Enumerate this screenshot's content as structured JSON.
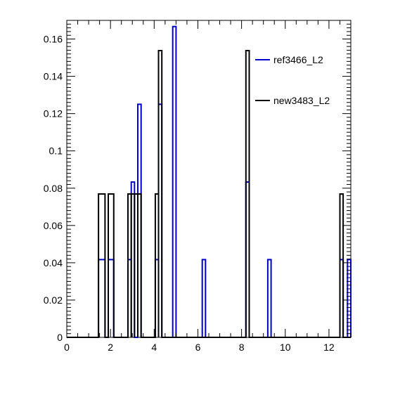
{
  "chart_data": {
    "type": "step-histogram",
    "title": "",
    "xlabel": "",
    "ylabel": "",
    "xlim": [
      0,
      13
    ],
    "ylim": [
      0,
      0.17
    ],
    "grid": false,
    "legend_position": "top-right",
    "x_ticks": [
      0,
      2,
      4,
      6,
      8,
      10,
      12
    ],
    "x_tick_labels": [
      "0",
      "2",
      "4",
      "6",
      "8",
      "10",
      "12"
    ],
    "y_ticks": [
      0,
      0.02,
      0.04,
      0.06,
      0.08,
      0.1,
      0.12,
      0.14,
      0.16
    ],
    "y_tick_labels": [
      "0",
      "0.02",
      "0.04",
      "0.06",
      "0.08",
      "0.1",
      "0.12",
      "0.14",
      "0.16"
    ],
    "series": [
      {
        "name": "ref3466_L2",
        "color": "#0000cc",
        "bins": [
          {
            "x0": 1.45,
            "x1": 1.75,
            "y": 0.0417
          },
          {
            "x0": 1.9,
            "x1": 2.15,
            "y": 0.0417
          },
          {
            "x0": 2.8,
            "x1": 2.95,
            "y": 0.0417
          },
          {
            "x0": 2.95,
            "x1": 3.1,
            "y": 0.0833
          },
          {
            "x0": 3.25,
            "x1": 3.4,
            "y": 0.125
          },
          {
            "x0": 4.05,
            "x1": 4.2,
            "y": 0.0417
          },
          {
            "x0": 4.2,
            "x1": 4.35,
            "y": 0.125
          },
          {
            "x0": 4.85,
            "x1": 5.0,
            "y": 0.1667
          },
          {
            "x0": 6.2,
            "x1": 6.35,
            "y": 0.0417
          },
          {
            "x0": 8.2,
            "x1": 8.35,
            "y": 0.0833
          },
          {
            "x0": 9.2,
            "x1": 9.35,
            "y": 0.0417
          },
          {
            "x0": 12.5,
            "x1": 12.65,
            "y": 0.0417
          },
          {
            "x0": 12.85,
            "x1": 13.0,
            "y": 0.0417
          }
        ]
      },
      {
        "name": "new3483_L2",
        "color": "#000000",
        "bins": [
          {
            "x0": 1.45,
            "x1": 1.75,
            "y": 0.0769
          },
          {
            "x0": 1.9,
            "x1": 2.15,
            "y": 0.0769
          },
          {
            "x0": 2.8,
            "x1": 2.95,
            "y": 0.0769
          },
          {
            "x0": 2.95,
            "x1": 3.1,
            "y": 0.0769
          },
          {
            "x0": 3.1,
            "x1": 3.25,
            "y": 0.0769
          },
          {
            "x0": 3.25,
            "x1": 3.4,
            "y": 0.0769
          },
          {
            "x0": 4.05,
            "x1": 4.2,
            "y": 0.0769
          },
          {
            "x0": 4.2,
            "x1": 4.35,
            "y": 0.1538
          },
          {
            "x0": 8.2,
            "x1": 8.35,
            "y": 0.1538
          },
          {
            "x0": 12.5,
            "x1": 12.65,
            "y": 0.0769
          }
        ]
      }
    ]
  }
}
